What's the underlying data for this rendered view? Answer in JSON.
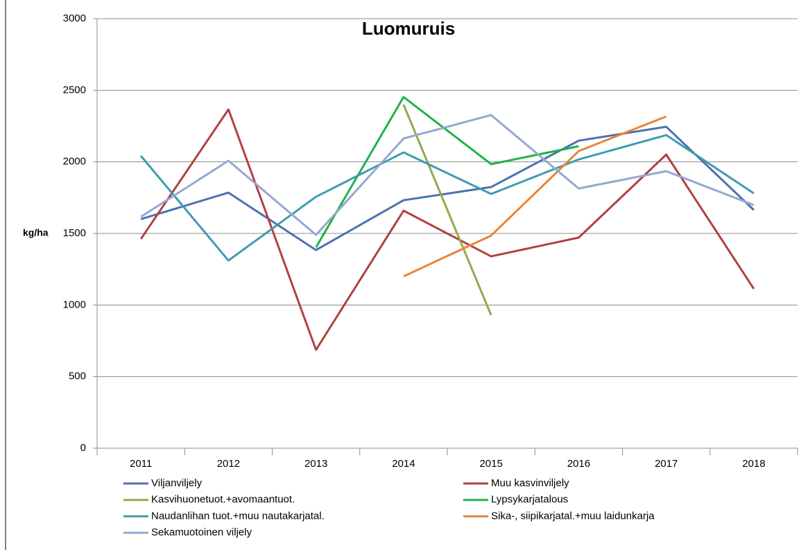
{
  "chart_data": {
    "type": "line",
    "title": "Luomuruis",
    "y_label": "kg/ha",
    "categories": [
      "2011",
      "2012",
      "2013",
      "2014",
      "2015",
      "2016",
      "2017",
      "2018"
    ],
    "series": [
      {
        "name": "Viljanviljely",
        "color": "#4a72b0",
        "values": [
          1600,
          1785,
          1384,
          1732,
          1824,
          2148,
          2245,
          1664
        ]
      },
      {
        "name": "Muu kasvinviljely",
        "color": "#b0413e",
        "values": [
          1461,
          2366,
          687,
          1659,
          1340,
          1471,
          2051,
          1113
        ]
      },
      {
        "name": "Kasvihuonetuot.+avomaantuot.",
        "color": "#8fac4b",
        "values": [
          null,
          null,
          null,
          2400,
          929,
          null,
          null,
          null
        ]
      },
      {
        "name": "Lypsykarjatalous",
        "color": "#1db34a",
        "values": [
          null,
          null,
          1403,
          2453,
          1984,
          2109,
          null,
          null
        ]
      },
      {
        "name": "Naudanlihan tuot.+muu nautakarjatal.",
        "color": "#3f9bb0",
        "values": [
          2042,
          1311,
          1756,
          2066,
          1776,
          2017,
          2187,
          1780
        ]
      },
      {
        "name": "Sika-, siipikarjatal.+muu laidunkarja",
        "color": "#e8843a",
        "values": [
          null,
          null,
          null,
          1200,
          1485,
          2075,
          2317,
          null
        ]
      },
      {
        "name": "Sekamuotoinen viljely",
        "color": "#94a8d0",
        "values": [
          1616,
          2008,
          1490,
          2163,
          2327,
          1814,
          1935,
          1698
        ]
      }
    ],
    "ylim": [
      0,
      3000
    ],
    "yticks": [
      0,
      500,
      1000,
      1500,
      2000,
      2500,
      3000
    ],
    "grid": true
  }
}
